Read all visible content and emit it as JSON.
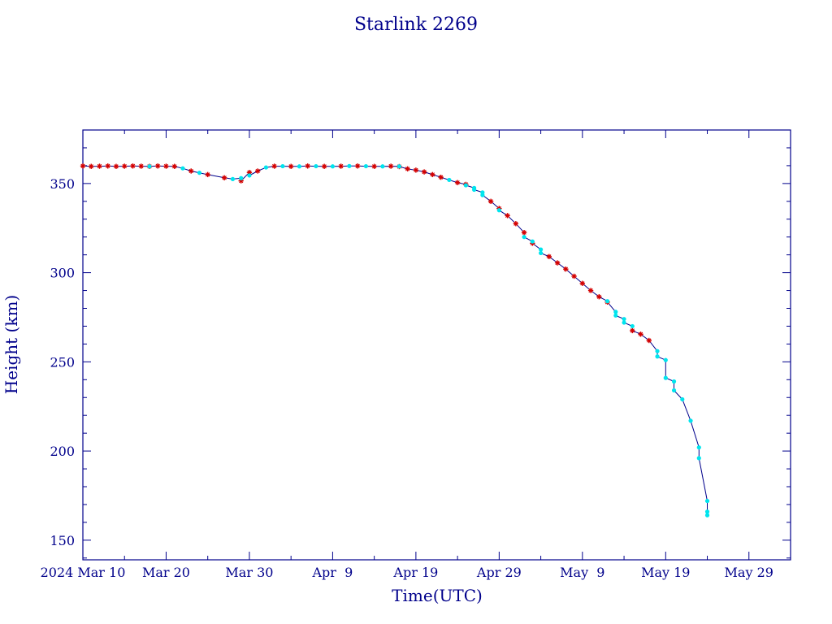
{
  "chart_data": {
    "type": "line",
    "title": "Starlink 2269",
    "xlabel": "Time(UTC)",
    "ylabel": "Height (km)",
    "x_range": [
      "2024-03-10",
      "2024-06-03"
    ],
    "y_range": [
      139,
      380
    ],
    "y_ticks": [
      150,
      200,
      250,
      300,
      350
    ],
    "x_ticks": [
      {
        "date": "2024-03-10",
        "label": "2024 Mar 10"
      },
      {
        "date": "2024-03-20",
        "label": "Mar 20"
      },
      {
        "date": "2024-03-30",
        "label": "Mar 30"
      },
      {
        "date": "2024-04-09",
        "label": "Apr  9"
      },
      {
        "date": "2024-04-19",
        "label": "Apr 19"
      },
      {
        "date": "2024-04-29",
        "label": "Apr 29"
      },
      {
        "date": "2024-05-09",
        "label": "May  9"
      },
      {
        "date": "2024-05-19",
        "label": "May 19"
      },
      {
        "date": "2024-05-29",
        "label": "May 29"
      }
    ],
    "x_minor_step_days": 5,
    "y_minor_step": 10,
    "grid": false,
    "colors": {
      "axes": "#00008b",
      "line": "#00008b",
      "marker_a": "#d40000",
      "marker_b": "#00e5ee"
    },
    "series": [
      {
        "marker": "star",
        "points": [
          [
            "2024-03-06",
            359.7
          ],
          [
            "2024-03-07",
            359.6
          ],
          [
            "2024-03-08",
            359.8
          ],
          [
            "2024-03-09",
            359.6
          ],
          [
            "2024-03-10",
            359.8
          ],
          [
            "2024-03-11",
            359.6
          ],
          [
            "2024-03-12",
            359.7
          ],
          [
            "2024-03-13",
            359.8
          ],
          [
            "2024-03-14",
            359.6
          ],
          [
            "2024-03-15",
            359.7
          ],
          [
            "2024-03-16",
            359.8
          ],
          [
            "2024-03-17",
            359.7
          ],
          [
            "2024-03-18",
            359.6
          ],
          [
            "2024-03-19",
            359.8
          ],
          [
            "2024-03-20",
            359.7
          ],
          [
            "2024-03-21",
            359.6
          ],
          [
            "2024-03-23",
            357.0
          ],
          [
            "2024-03-25",
            355.0
          ],
          [
            "2024-03-27",
            353.2
          ],
          [
            "2024-03-29",
            351.5
          ],
          [
            "2024-03-30",
            356.2
          ],
          [
            "2024-03-31",
            357.0
          ],
          [
            "2024-04-02",
            359.7
          ],
          [
            "2024-04-04",
            359.6
          ],
          [
            "2024-04-06",
            359.8
          ],
          [
            "2024-04-08",
            359.6
          ],
          [
            "2024-04-10",
            359.7
          ],
          [
            "2024-04-12",
            359.8
          ],
          [
            "2024-04-14",
            359.6
          ],
          [
            "2024-04-16",
            359.7
          ],
          [
            "2024-04-17",
            359.5
          ],
          [
            "2024-04-18",
            358.2
          ],
          [
            "2024-04-19",
            357.5
          ],
          [
            "2024-04-20",
            356.5
          ],
          [
            "2024-04-21",
            355.0
          ],
          [
            "2024-04-22",
            353.5
          ],
          [
            "2024-04-24",
            350.5
          ],
          [
            "2024-04-25",
            349.5
          ],
          [
            "2024-04-28",
            340.0
          ],
          [
            "2024-04-29",
            336.0
          ],
          [
            "2024-04-30",
            332.0
          ],
          [
            "2024-05-01",
            327.5
          ],
          [
            "2024-05-02",
            322.5
          ],
          [
            "2024-05-03",
            316.5
          ],
          [
            "2024-05-05",
            309.0
          ],
          [
            "2024-05-06",
            305.5
          ],
          [
            "2024-05-07",
            302.0
          ],
          [
            "2024-05-08",
            298.0
          ],
          [
            "2024-05-09",
            294.0
          ],
          [
            "2024-05-10",
            290.0
          ],
          [
            "2024-05-11",
            286.5
          ],
          [
            "2024-05-12",
            283.5
          ],
          [
            "2024-05-15",
            267.5
          ],
          [
            "2024-05-16",
            265.5
          ],
          [
            "2024-05-17",
            262.0
          ]
        ]
      },
      {
        "marker": "dot",
        "points": [
          [
            "2024-03-06",
            359.7
          ],
          [
            "2024-03-09",
            359.6
          ],
          [
            "2024-03-18",
            359.6
          ],
          [
            "2024-03-22",
            358.5
          ],
          [
            "2024-03-24",
            356.0
          ],
          [
            "2024-03-28",
            352.5
          ],
          [
            "2024-03-29",
            353.0
          ],
          [
            "2024-03-30",
            354.5
          ],
          [
            "2024-04-01",
            359.0
          ],
          [
            "2024-04-03",
            359.7
          ],
          [
            "2024-04-05",
            359.6
          ],
          [
            "2024-04-07",
            359.7
          ],
          [
            "2024-04-09",
            359.6
          ],
          [
            "2024-04-11",
            359.8
          ],
          [
            "2024-04-13",
            359.7
          ],
          [
            "2024-04-15",
            359.6
          ],
          [
            "2024-04-17",
            359.6
          ],
          [
            "2024-04-23",
            352.0
          ],
          [
            "2024-04-25",
            349.0
          ],
          [
            "2024-04-26",
            347.5
          ],
          [
            "2024-04-26",
            346.5
          ],
          [
            "2024-04-27",
            345.0
          ],
          [
            "2024-04-27",
            343.5
          ],
          [
            "2024-04-29",
            335.0
          ],
          [
            "2024-05-02",
            320.0
          ],
          [
            "2024-05-03",
            317.5
          ],
          [
            "2024-05-04",
            313.0
          ],
          [
            "2024-05-04",
            311.0
          ],
          [
            "2024-05-12",
            284.0
          ],
          [
            "2024-05-13",
            278.0
          ],
          [
            "2024-05-13",
            276.0
          ],
          [
            "2024-05-14",
            274.0
          ],
          [
            "2024-05-14",
            272.0
          ],
          [
            "2024-05-15",
            270.0
          ],
          [
            "2024-05-18",
            256.0
          ],
          [
            "2024-05-18",
            253.0
          ],
          [
            "2024-05-19",
            251.0
          ],
          [
            "2024-05-19",
            241.0
          ],
          [
            "2024-05-20",
            239.0
          ],
          [
            "2024-05-20",
            234.0
          ],
          [
            "2024-05-21",
            229.0
          ],
          [
            "2024-05-22",
            217.0
          ],
          [
            "2024-05-23",
            202.0
          ],
          [
            "2024-05-23",
            196.0
          ],
          [
            "2024-05-24",
            172.0
          ],
          [
            "2024-05-24",
            166.0
          ],
          [
            "2024-05-24",
            164.0
          ]
        ]
      }
    ]
  }
}
